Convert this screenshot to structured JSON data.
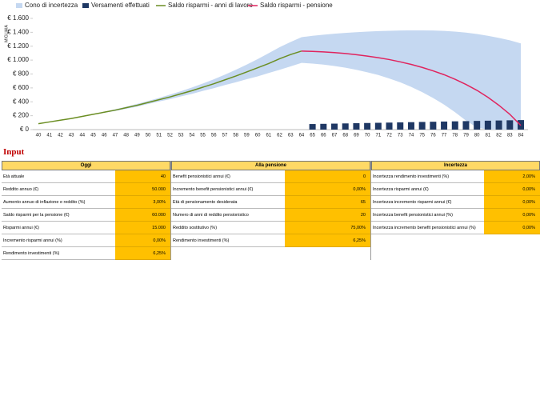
{
  "chart_data": {
    "type": "line",
    "y_axis_label": "MIGLIAIA",
    "categories": [
      40,
      41,
      42,
      43,
      44,
      45,
      46,
      47,
      48,
      49,
      50,
      51,
      52,
      53,
      54,
      55,
      56,
      57,
      58,
      59,
      60,
      61,
      62,
      63,
      64,
      65,
      66,
      67,
      68,
      69,
      70,
      71,
      72,
      73,
      74,
      75,
      76,
      77,
      78,
      79,
      80,
      81,
      82,
      83,
      84
    ],
    "ylim": [
      0,
      1600
    ],
    "yticks": [
      {
        "value": 0,
        "label": "€ 0"
      },
      {
        "value": 200,
        "label": "€ 200"
      },
      {
        "value": 400,
        "label": "€ 400"
      },
      {
        "value": 600,
        "label": "€ 600"
      },
      {
        "value": 800,
        "label": "€ 800"
      },
      {
        "value": 1000,
        "label": "€ 1.000"
      },
      {
        "value": 1200,
        "label": "€ 1.200"
      },
      {
        "value": 1400,
        "label": "€ 1.400"
      },
      {
        "value": 1600,
        "label": "€ 1.600"
      }
    ],
    "series": [
      {
        "name": "Cono di incertezza",
        "kind": "band",
        "color": "#c5d8f1",
        "high": [
          85,
          110,
          136,
          163,
          193,
          225,
          258,
          292,
          330,
          370,
          412,
          456,
          503,
          553,
          606,
          663,
          724,
          790,
          860,
          935,
          1015,
          1100,
          1185,
          1260,
          1330,
          1350,
          1365,
          1380,
          1392,
          1402,
          1410,
          1417,
          1422,
          1426,
          1428,
          1428,
          1426,
          1420,
          1410,
          1395,
          1375,
          1350,
          1320,
          1285,
          1240
        ],
        "low": [
          85,
          110,
          134,
          157,
          187,
          215,
          242,
          268,
          300,
          330,
          368,
          404,
          437,
          477,
          514,
          557,
          596,
          640,
          680,
          725,
          765,
          815,
          860,
          910,
          960,
          950,
          935,
          915,
          890,
          860,
          825,
          785,
          735,
          680,
          615,
          540,
          455,
          360,
          250,
          130,
          30,
          0,
          0,
          0,
          0
        ]
      },
      {
        "name": "Versamenti effettuati",
        "kind": "bar",
        "color": "#1f3864",
        "values": [
          null,
          null,
          null,
          null,
          null,
          null,
          null,
          null,
          null,
          null,
          null,
          null,
          null,
          null,
          null,
          null,
          null,
          null,
          null,
          null,
          null,
          null,
          null,
          null,
          null,
          80,
          83,
          86,
          89,
          92,
          95,
          98,
          101,
          104,
          107,
          110,
          113,
          116,
          119,
          122,
          125,
          128,
          131,
          134,
          137
        ]
      },
      {
        "name": "Saldo risparmi - anni di lavoro",
        "kind": "line",
        "color": "#6b8e23",
        "values": [
          85,
          110,
          135,
          160,
          190,
          220,
          250,
          280,
          315,
          350,
          390,
          430,
          470,
          515,
          560,
          610,
          660,
          715,
          770,
          830,
          890,
          950,
          1020,
          1080,
          1130,
          null,
          null,
          null,
          null,
          null,
          null,
          null,
          null,
          null,
          null,
          null,
          null,
          null,
          null,
          null,
          null,
          null,
          null,
          null,
          null
        ]
      },
      {
        "name": "Saldo risparmi - pensione",
        "kind": "line",
        "color": "#e0245e",
        "values": [
          null,
          null,
          null,
          null,
          null,
          null,
          null,
          null,
          null,
          null,
          null,
          null,
          null,
          null,
          null,
          null,
          null,
          null,
          null,
          null,
          null,
          null,
          null,
          null,
          1130,
          1125,
          1118,
          1108,
          1095,
          1078,
          1058,
          1035,
          1008,
          975,
          938,
          895,
          845,
          790,
          725,
          650,
          565,
          465,
          350,
          220,
          60
        ]
      }
    ]
  },
  "input": {
    "title": "Input",
    "sections": [
      {
        "title": "Oggi",
        "rows": [
          [
            "Età attuale",
            "40"
          ],
          [
            "Reddito annuo (€)",
            "50.000"
          ],
          [
            "Aumento annuo di inflazione e reddito (%)",
            "3,00%"
          ],
          [
            "Saldo risparmi per la pensione (€)",
            "60.000"
          ],
          [
            "Risparmi annui (€)",
            "15.000"
          ],
          [
            "Incremento risparmi annui (%)",
            "0,00%"
          ],
          [
            "Rendimento investimenti (%)",
            "6,25%"
          ]
        ]
      },
      {
        "title": "Alla pensione",
        "rows": [
          [
            "Benefit pensionistici annui (€)",
            "0"
          ],
          [
            "Incremento benefit pensionistici annui (€)",
            "0,00%"
          ],
          [
            "Età di pensionamento desiderata",
            "65"
          ],
          [
            "Numero di anni di reddito pensionistico",
            "20"
          ],
          [
            "Reddito sostitutivo (%)",
            "75,00%"
          ],
          [
            "Rendimento investimenti (%)",
            "6,25%"
          ]
        ]
      },
      {
        "title": "Incertezza",
        "rows": [
          [
            "Incertezza rendimento investimenti (%)",
            "2,00%"
          ],
          [
            "Incertezza risparmi annui (€)",
            "0,00%"
          ],
          [
            "Incertezza incremento risparmi annui (€)",
            "0,00%"
          ],
          [
            "Incertezza benefit pensionistici annui (%)",
            "0,00%"
          ],
          [
            "Incertezza incremento benefit pensionistici annui (%)",
            "0,00%"
          ]
        ]
      }
    ]
  }
}
